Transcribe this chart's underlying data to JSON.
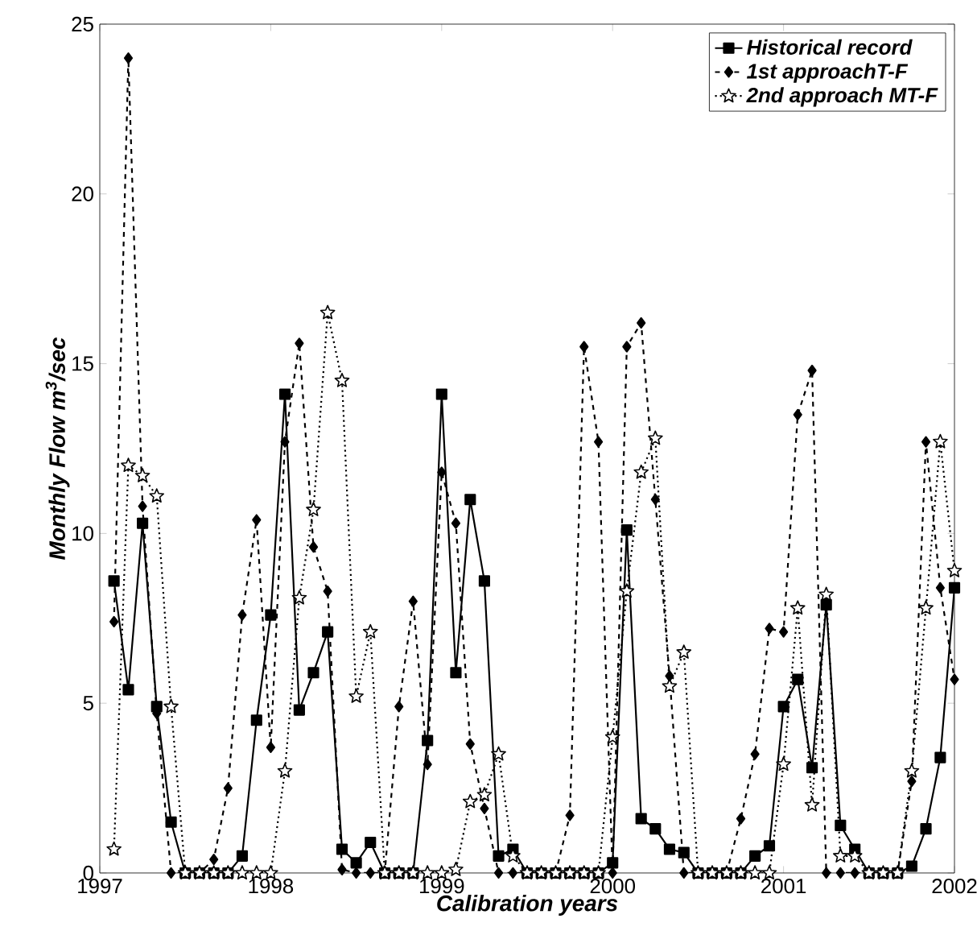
{
  "chart_data": {
    "type": "line",
    "xlabel": "Calibration years",
    "ylabel": "Monthly Flow m$^{3}$/sec",
    "x": [
      1997.083,
      1997.167,
      1997.25,
      1997.333,
      1997.417,
      1997.5,
      1997.583,
      1997.667,
      1997.75,
      1997.833,
      1997.917,
      1998,
      1998.083,
      1998.167,
      1998.25,
      1998.333,
      1998.417,
      1998.5,
      1998.583,
      1998.667,
      1998.75,
      1998.833,
      1998.917,
      1999,
      1999.083,
      1999.167,
      1999.25,
      1999.333,
      1999.417,
      1999.5,
      1999.583,
      1999.667,
      1999.75,
      1999.833,
      1999.917,
      2000,
      2000.083,
      2000.167,
      2000.25,
      2000.333,
      2000.417,
      2000.5,
      2000.583,
      2000.667,
      2000.75,
      2000.833,
      2000.917,
      2001,
      2001.083,
      2001.167,
      2001.25,
      2001.333,
      2001.417,
      2001.5,
      2001.583,
      2001.667,
      2001.75,
      2001.833,
      2001.917,
      2002
    ],
    "series": [
      {
        "name": "Historical record",
        "color": "#000000",
        "marker": "square",
        "line_style": "solid",
        "values": [
          8.6,
          5.4,
          10.3,
          4.9,
          1.5,
          0,
          0,
          0,
          0,
          0.5,
          4.5,
          7.6,
          14.1,
          4.8,
          5.9,
          7.1,
          0.7,
          0.3,
          0.9,
          0,
          0,
          0,
          3.9,
          14.1,
          5.9,
          11.0,
          8.6,
          0.5,
          0.7,
          0,
          0,
          0,
          0,
          0,
          0,
          0.3,
          10.1,
          1.6,
          1.3,
          0.7,
          0.6,
          0,
          0,
          0,
          0,
          0.5,
          0.8,
          4.9,
          5.7,
          3.1,
          7.9,
          1.4,
          0.7,
          0,
          0,
          0,
          0.2,
          1.3,
          3.4,
          8.4
        ]
      },
      {
        "name": "1st approachT-F",
        "color": "#000000",
        "marker": "diamond",
        "line_style": "dashed",
        "values": [
          7.4,
          24.0,
          10.8,
          4.7,
          0,
          0,
          0,
          0.4,
          2.5,
          7.6,
          10.4,
          3.7,
          12.7,
          15.6,
          9.6,
          8.3,
          0.1,
          0,
          0,
          0,
          4.9,
          8.0,
          3.2,
          11.8,
          10.3,
          3.8,
          1.9,
          0,
          0,
          0,
          0,
          0,
          1.7,
          15.5,
          12.7,
          0,
          15.5,
          16.2,
          11.0,
          5.8,
          0,
          0,
          0,
          0,
          1.6,
          3.5,
          7.2,
          7.1,
          13.5,
          14.8,
          0,
          0,
          0,
          0,
          0,
          0,
          2.7,
          12.7,
          8.4,
          5.7
        ]
      },
      {
        "name": "2nd approach MT-F",
        "color": "#000000",
        "marker": "star",
        "line_style": "dotted",
        "values": [
          0.7,
          12.0,
          11.7,
          11.1,
          4.9,
          0,
          0,
          0,
          0,
          0,
          0,
          0,
          3.0,
          8.1,
          10.7,
          16.5,
          14.5,
          5.2,
          7.1,
          0,
          0,
          0,
          0,
          0,
          0.1,
          2.1,
          2.3,
          3.5,
          0.5,
          0,
          0,
          0,
          0,
          0,
          0,
          4.0,
          8.3,
          11.8,
          12.8,
          5.5,
          6.5,
          0,
          0,
          0,
          0,
          0,
          0,
          3.2,
          7.8,
          2.0,
          8.2,
          0.5,
          0.5,
          0,
          0,
          0,
          3.0,
          7.8,
          12.7,
          8.9
        ]
      }
    ],
    "xlim": [
      1997,
      2002
    ],
    "xticks": [
      1997,
      1998,
      1999,
      2000,
      2001,
      2002
    ],
    "ylim": [
      0,
      25
    ],
    "yticks": [
      0,
      5,
      10,
      15,
      20,
      25
    ],
    "grid": false,
    "legend": "top right"
  }
}
